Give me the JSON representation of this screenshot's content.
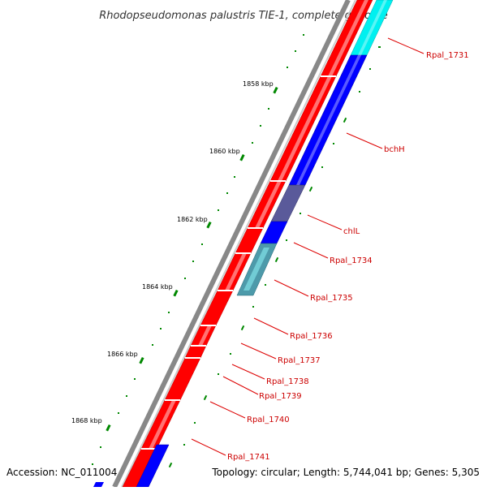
{
  "title": "Rhodopseudomonas palustris TIE-1, complete genome",
  "footer": {
    "accession": "Accession: NC_011004",
    "summary": "Topology: circular; Length: 5,744,041 bp; Genes: 5,305"
  },
  "scale_labels": [
    "1858 kbp",
    "1860 kbp",
    "1862 kbp",
    "1864 kbp",
    "1866 kbp",
    "1868 kbp"
  ],
  "gene_labels": [
    "Rpal_1731",
    "bchH",
    "chlL",
    "Rpal_1734",
    "Rpal_1735",
    "Rpal_1736",
    "Rpal_1737",
    "Rpal_1738",
    "Rpal_1739",
    "Rpal_1740",
    "Rpal_1741"
  ],
  "colors": {
    "forward_cds": "#ff0000",
    "reverse_cds": "#0000ff",
    "rna": "#00e0e0",
    "overlap": "#5a5a9a",
    "backbone": "#888888",
    "ticks": "#008800",
    "label_text": "#cc0000",
    "leader_line": "#dd0000"
  }
}
